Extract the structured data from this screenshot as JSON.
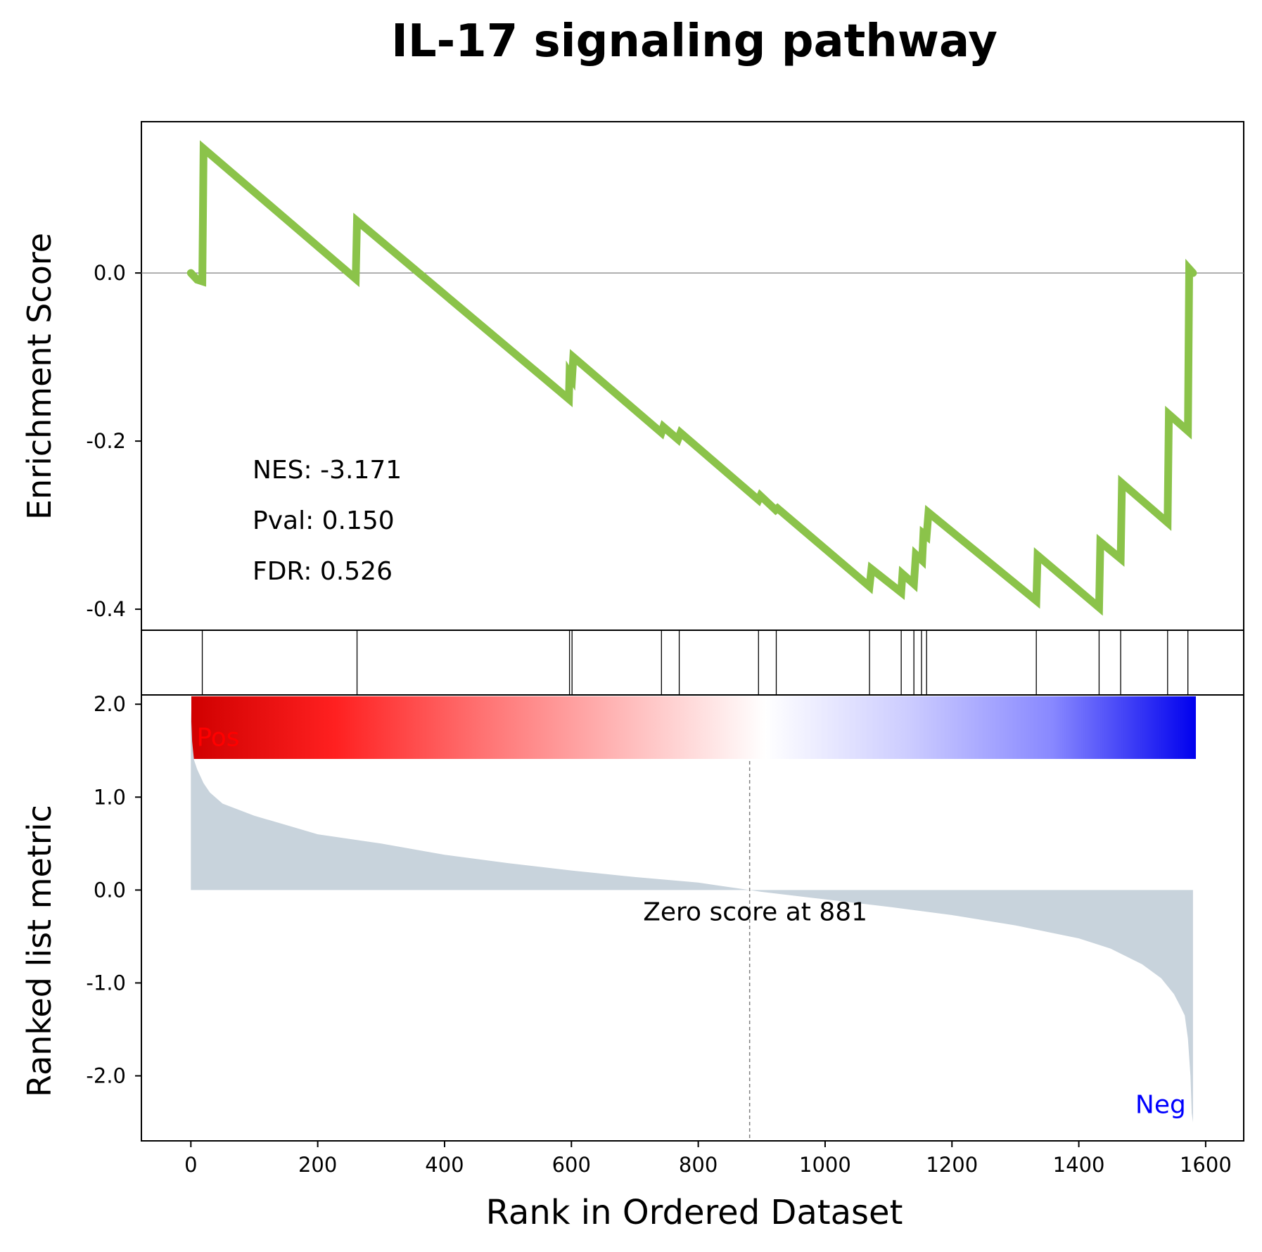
{
  "chart_data": {
    "type": "line",
    "title": "IL-17 signaling pathway",
    "xlabel": "Rank in Ordered Dataset",
    "xlim": [
      -78,
      1660
    ],
    "xticks": [
      0,
      200,
      400,
      600,
      800,
      1000,
      1200,
      1400,
      1600
    ],
    "panels": {
      "enrichment": {
        "ylabel": "Enrichment Score",
        "ylim": [
          -0.425,
          0.18
        ],
        "yticks": [
          0.0,
          -0.2,
          -0.4
        ],
        "ytick_labels": [
          "0.0",
          "-0.2",
          "-0.4"
        ],
        "line_color": "#8bc34a",
        "zero_line": true,
        "series": [
          {
            "points": [
              [
                0,
                0.0
              ],
              [
                10,
                -0.008
              ],
              [
                18,
                -0.01
              ],
              [
                20,
                0.148
              ],
              [
                260,
                -0.007
              ],
              [
                262,
                0.062
              ],
              [
                596,
                -0.15
              ],
              [
                597,
                -0.12
              ],
              [
                601,
                -0.125
              ],
              [
                603,
                -0.1
              ],
              [
                742,
                -0.19
              ],
              [
                745,
                -0.183
              ],
              [
                768,
                -0.198
              ],
              [
                772,
                -0.19
              ],
              [
                895,
                -0.27
              ],
              [
                898,
                -0.265
              ],
              [
                922,
                -0.282
              ],
              [
                925,
                -0.28
              ],
              [
                1070,
                -0.373
              ],
              [
                1073,
                -0.352
              ],
              [
                1120,
                -0.38
              ],
              [
                1122,
                -0.358
              ],
              [
                1140,
                -0.37
              ],
              [
                1143,
                -0.335
              ],
              [
                1153,
                -0.342
              ],
              [
                1155,
                -0.31
              ],
              [
                1160,
                -0.313
              ],
              [
                1163,
                -0.285
              ],
              [
                1333,
                -0.39
              ],
              [
                1335,
                -0.336
              ],
              [
                1432,
                -0.398
              ],
              [
                1434,
                -0.32
              ],
              [
                1466,
                -0.34
              ],
              [
                1468,
                -0.25
              ],
              [
                1540,
                -0.297
              ],
              [
                1542,
                -0.168
              ],
              [
                1572,
                -0.188
              ],
              [
                1574,
                0.005
              ],
              [
                1580,
                0.0
              ]
            ]
          }
        ],
        "stats": {
          "nes": "NES: -3.171",
          "pval": "Pval: 0.150",
          "fdr": "FDR: 0.526"
        }
      },
      "hits": {
        "positions": [
          18,
          262,
          597,
          601,
          742,
          770,
          895,
          923,
          1070,
          1120,
          1140,
          1152,
          1160,
          1333,
          1432,
          1466,
          1540,
          1572
        ]
      },
      "colorbar": {
        "gradient": [
          "#d00000",
          "#ff2020",
          "#ff7070",
          "#ffb8b8",
          "#ffffff",
          "#ccccff",
          "#8888ff",
          "#0000ee"
        ]
      },
      "ranked_metric": {
        "ylabel": "Ranked list metric",
        "ylim": [
          -2.7,
          2.1
        ],
        "yticks": [
          2.0,
          1.0,
          0.0,
          -1.0,
          -2.0
        ],
        "ytick_labels": [
          "2.0",
          "1.0",
          "0.0",
          "-1.0",
          "-2.0"
        ],
        "fill_color": "#c8d3dc",
        "n": 1580,
        "curve": [
          [
            0,
            1.95
          ],
          [
            2,
            1.6
          ],
          [
            5,
            1.4
          ],
          [
            10,
            1.3
          ],
          [
            20,
            1.15
          ],
          [
            30,
            1.05
          ],
          [
            50,
            0.93
          ],
          [
            100,
            0.8
          ],
          [
            150,
            0.7
          ],
          [
            200,
            0.6
          ],
          [
            300,
            0.5
          ],
          [
            400,
            0.38
          ],
          [
            500,
            0.29
          ],
          [
            600,
            0.21
          ],
          [
            700,
            0.14
          ],
          [
            800,
            0.08
          ],
          [
            881,
            0.0
          ],
          [
            900,
            -0.02
          ],
          [
            1000,
            -0.1
          ],
          [
            1100,
            -0.18
          ],
          [
            1200,
            -0.27
          ],
          [
            1300,
            -0.38
          ],
          [
            1400,
            -0.52
          ],
          [
            1450,
            -0.63
          ],
          [
            1500,
            -0.8
          ],
          [
            1530,
            -0.95
          ],
          [
            1550,
            -1.12
          ],
          [
            1560,
            -1.25
          ],
          [
            1567,
            -1.35
          ],
          [
            1572,
            -1.6
          ],
          [
            1576,
            -2.0
          ],
          [
            1578,
            -2.4
          ],
          [
            1580,
            -2.5
          ]
        ],
        "zero_cross": 881,
        "zero_label": "Zero score at 881",
        "pos_label": "Pos",
        "neg_label": "Neg",
        "pos_color": "#ff0000",
        "neg_color": "#0000ff"
      }
    }
  }
}
